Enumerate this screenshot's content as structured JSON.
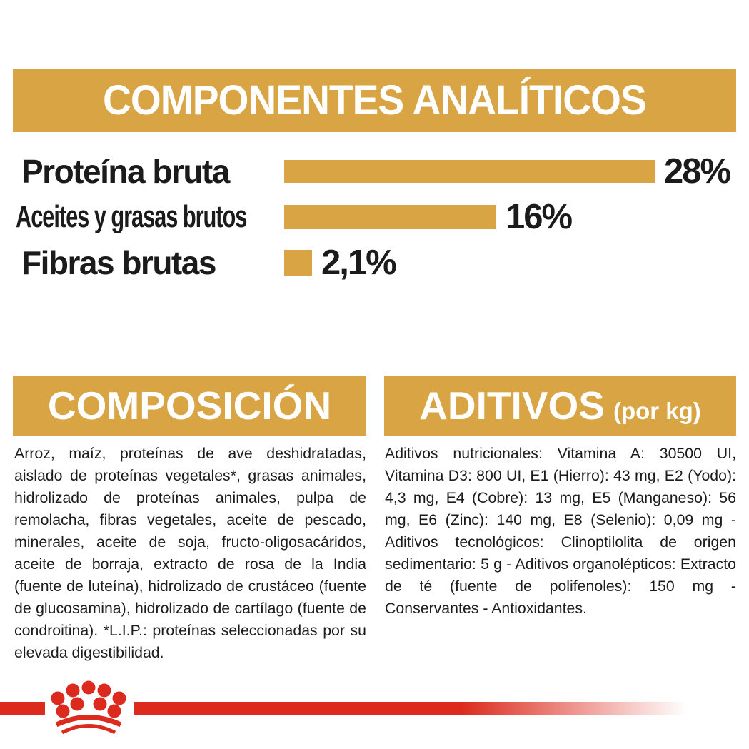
{
  "page": {
    "title_banner": "COMPONENTES ANALÍTICOS"
  },
  "chart_data": {
    "type": "bar",
    "orientation": "horizontal",
    "title": "COMPONENTES ANALÍTICOS",
    "categories": [
      "Proteína bruta",
      "Aceites y grasas brutos",
      "Fibras brutas"
    ],
    "values": [
      28,
      16,
      2.1
    ],
    "value_labels": [
      "28%",
      "16%",
      "2,1%"
    ],
    "max_value": 28,
    "bar_color": "#D9A443",
    "legend": "none",
    "grid": "off"
  },
  "sections": {
    "composition": {
      "heading": "COMPOSICIÓN",
      "body": "Arroz, maíz, proteínas de ave deshidratadas, aislado de proteínas vegetales*, grasas animales, hidrolizado de proteínas animales, pulpa de remolacha, fibras vegetales, aceite de pescado, minerales, aceite de soja, fructo-oligosacáridos, aceite de borraja, extracto de rosa de la India (fuente de luteína), hidrolizado de crustáceo (fuente de glucosamina), hidrolizado de cartílago (fuente de condroitina). *L.I.P.: proteínas seleccionadas por su elevada digestibilidad."
    },
    "additives": {
      "heading": "ADITIVOS",
      "heading_suffix": "(por kg)",
      "body": "Aditivos nutricionales: Vitamina A: 30500 UI, Vitamina D3: 800 UI, E1 (Hierro): 43 mg, E2 (Yodo): 4,3 mg, E4 (Cobre): 13 mg, E5 (Manganeso): 56 mg, E6 (Zinc): 140 mg, E8 (Selenio): 0,09 mg - Aditivos tecnológicos: Clinoptilolita de origen sedimentario: 5 g - Aditivos organolépticos: Extracto de té (fuente de polifenoles): 150 mg - Conservantes - Antioxidantes."
    }
  },
  "footer": {
    "logo": "royal-canin-crown"
  },
  "colors": {
    "gold": "#D9A443",
    "red": "#DC2B1E",
    "text": "#1B1B1B"
  }
}
